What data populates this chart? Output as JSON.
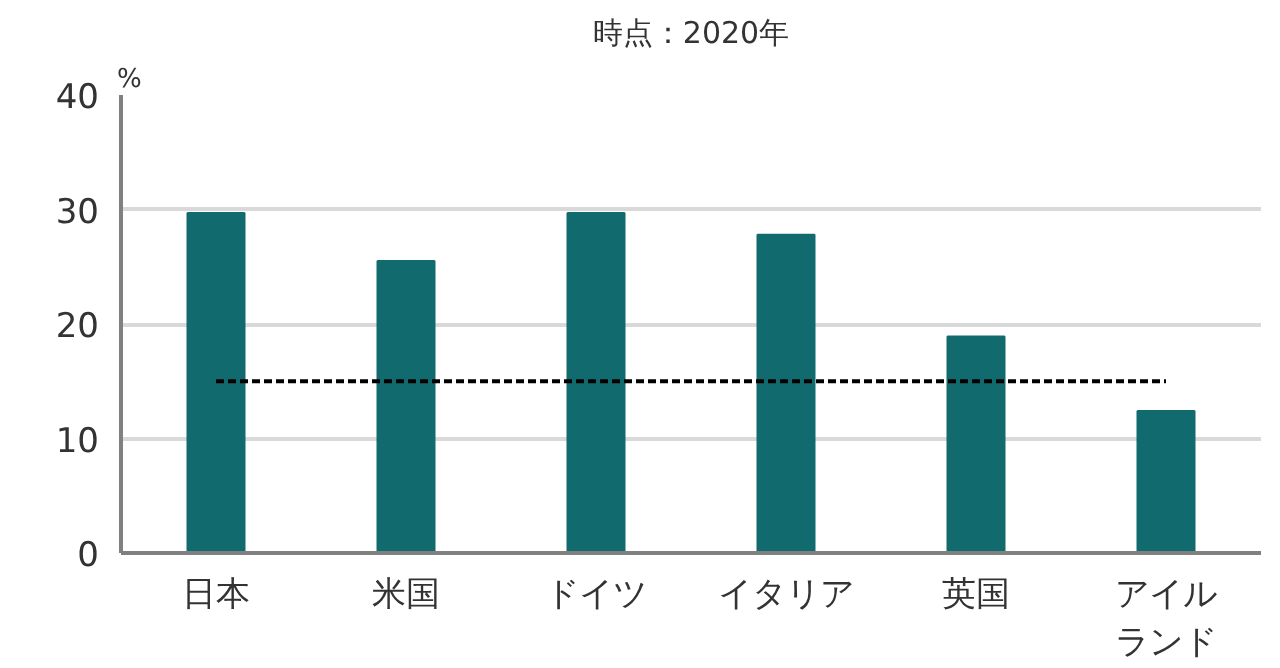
{
  "chart_data": {
    "type": "bar",
    "title": "時点：2020年",
    "ylabel": "%",
    "categories": [
      "日本",
      "米国",
      "ドイツ",
      "イタリア",
      "英国",
      "アイルランド"
    ],
    "values": [
      29.7,
      25.5,
      29.7,
      27.8,
      18.9,
      12.4
    ],
    "color": "#116b6e",
    "ylim": [
      0,
      40
    ],
    "yticks": [
      0,
      10,
      20,
      30,
      40
    ],
    "grid": "y",
    "ref_lines": [
      {
        "axis": "y",
        "value": 15,
        "color": "#000000",
        "line_style": "dashed"
      }
    ]
  }
}
